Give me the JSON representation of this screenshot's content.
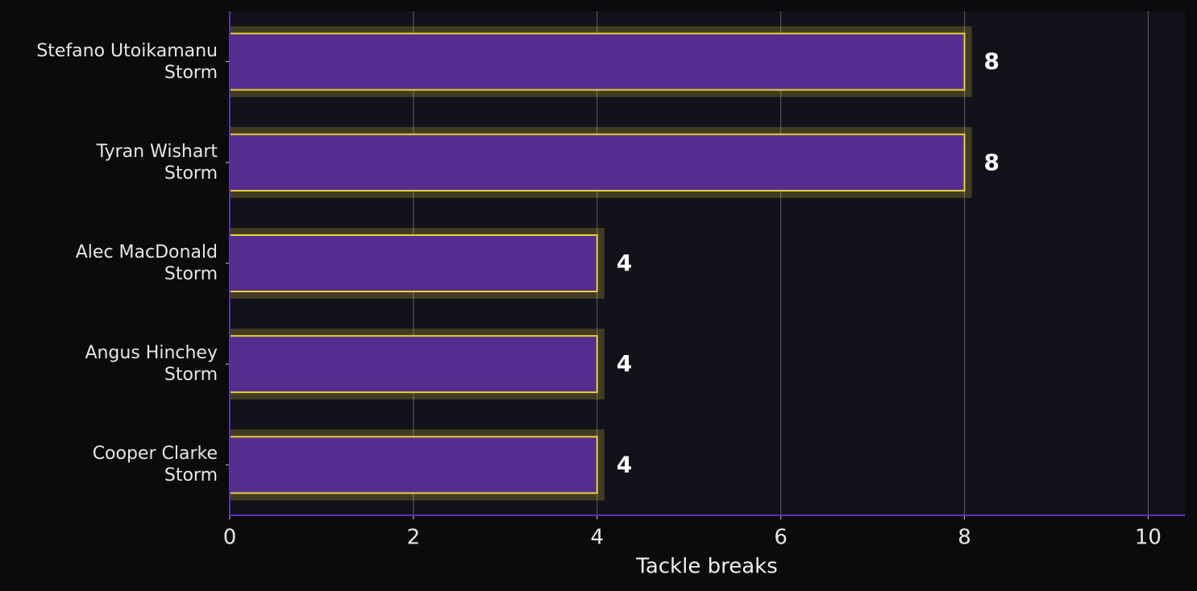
{
  "chart_data": {
    "type": "barh",
    "categories": [
      "Stefano Utoikamanu\nStorm",
      "Tyran Wishart\nStorm",
      "Alec MacDonald\nStorm",
      "Angus Hinchey\nStorm",
      "Cooper Clarke\nStorm"
    ],
    "values": [
      8,
      8,
      4,
      4,
      4
    ],
    "color": "#542d8f",
    "edge_color": "#e8d13a",
    "xlabel": "Tackle breaks",
    "xlim": [
      0,
      10.4
    ],
    "xticks": [
      0,
      2,
      4,
      6,
      8,
      10
    ],
    "grid": true
  }
}
